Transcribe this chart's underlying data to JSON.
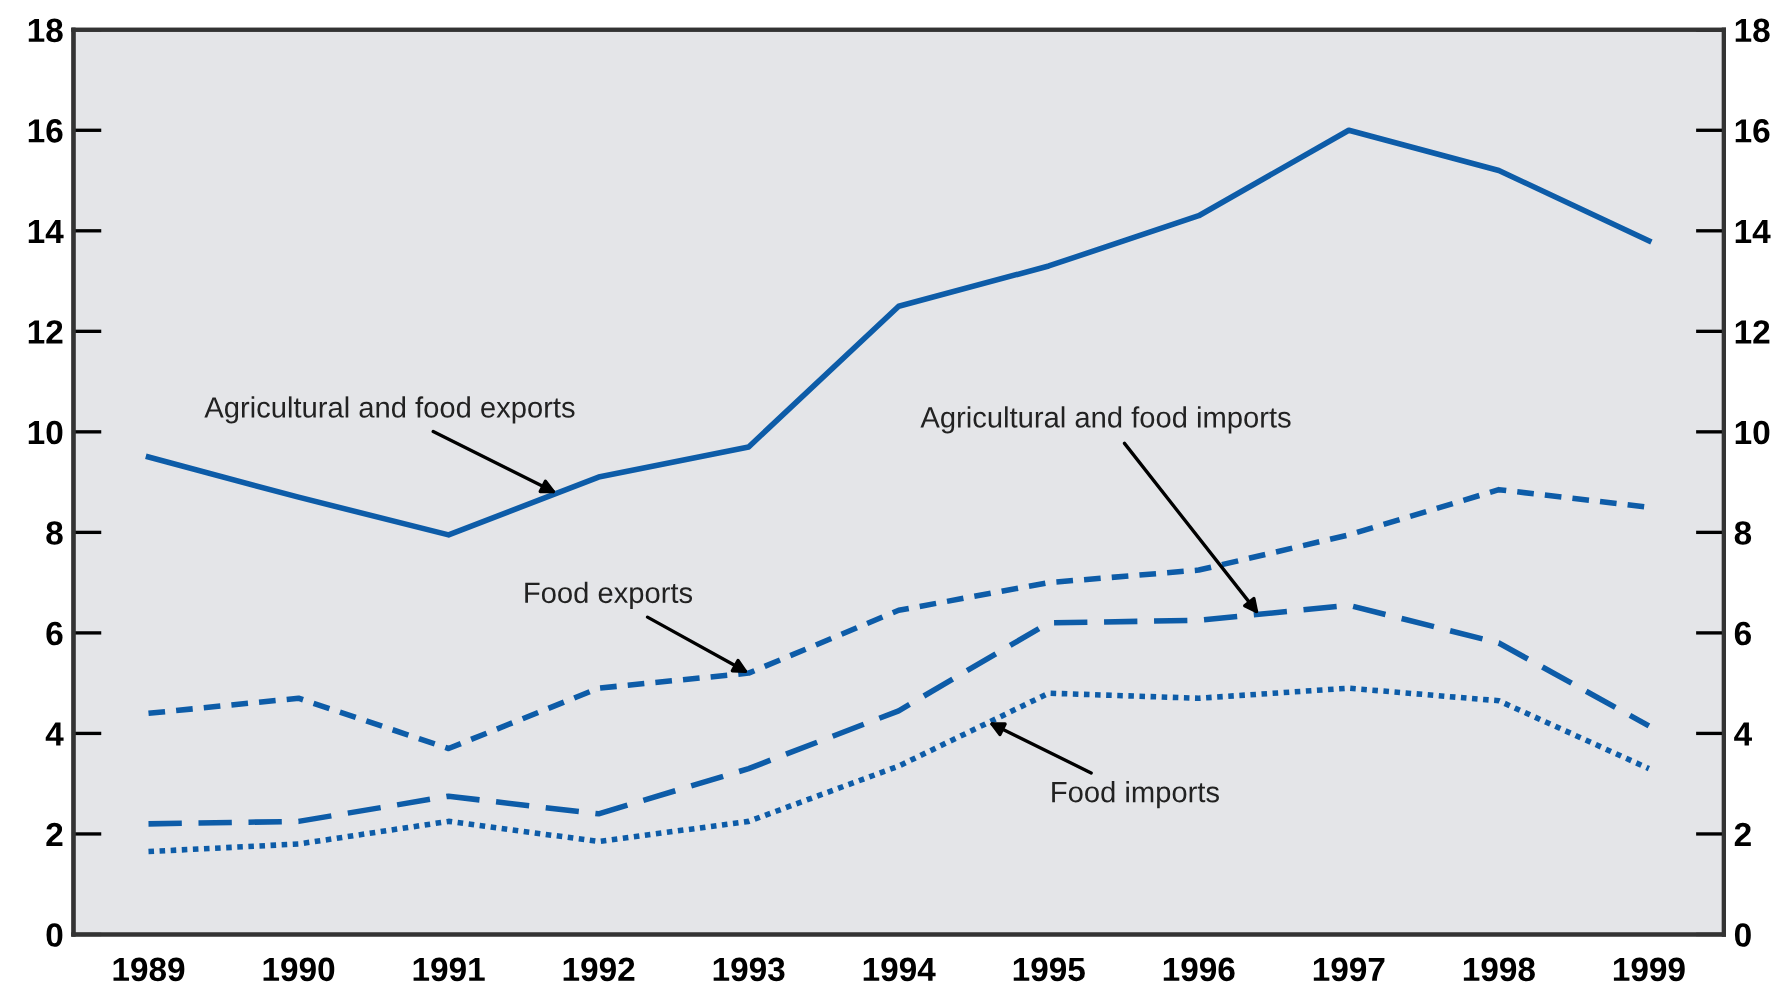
{
  "chart_data": {
    "type": "line",
    "categories": [
      "1989",
      "1990",
      "1991",
      "1992",
      "1993",
      "1994",
      "1995",
      "1996",
      "1997",
      "1998",
      "1999"
    ],
    "series": [
      {
        "name": "Agricultural and food exports",
        "color": "#0d5ca8",
        "line_style": "solid",
        "values": [
          9.5,
          8.7,
          7.95,
          9.1,
          9.7,
          12.5,
          13.3,
          14.3,
          16.0,
          15.2,
          13.8
        ]
      },
      {
        "name": "Food exports",
        "color": "#0d5ca8",
        "line_style": "dashed",
        "values": [
          4.4,
          4.7,
          3.7,
          4.9,
          5.2,
          6.45,
          7.0,
          7.25,
          7.95,
          8.85,
          8.5
        ]
      },
      {
        "name": "Agricultural and food imports",
        "color": "#0d5ca8",
        "line_style": "dashed",
        "values": [
          2.2,
          2.25,
          2.75,
          2.4,
          3.3,
          4.45,
          6.2,
          6.25,
          6.55,
          5.8,
          4.15
        ]
      },
      {
        "name": "Food imports",
        "color": "#0d5ca8",
        "line_style": "dotted",
        "values": [
          1.65,
          1.8,
          2.25,
          1.85,
          2.25,
          3.35,
          4.8,
          4.7,
          4.9,
          4.65,
          3.3
        ]
      }
    ],
    "ylim": [
      0,
      18
    ],
    "yticks": [
      0,
      2,
      4,
      6,
      8,
      10,
      12,
      14,
      16,
      18
    ],
    "y2lim": [
      0,
      18
    ],
    "y2ticks": [
      0,
      2,
      4,
      6,
      8,
      10,
      12,
      14,
      16,
      18
    ],
    "grid": false,
    "legend": false,
    "marker": "none"
  }
}
